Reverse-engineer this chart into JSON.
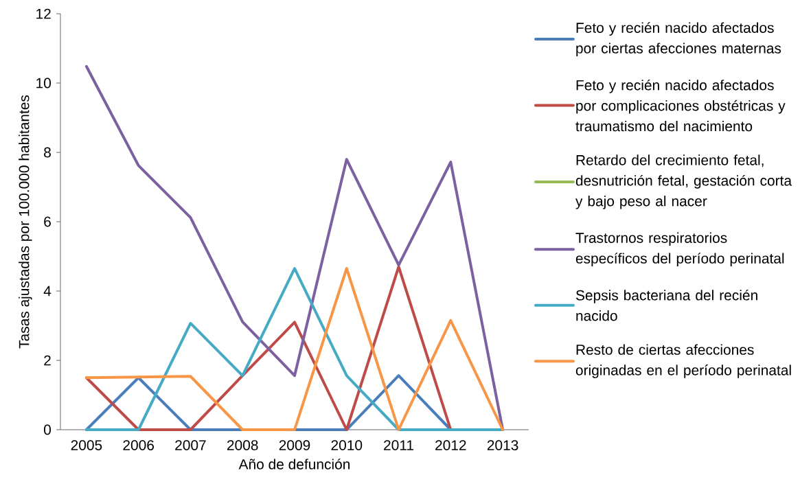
{
  "chart_data": {
    "type": "line",
    "xlabel": "Año de defunción",
    "ylabel": "Tasas ajustadas por 100.000 habitantes",
    "categories": [
      "2005",
      "2006",
      "2007",
      "2008",
      "2009",
      "2010",
      "2011",
      "2012",
      "2013"
    ],
    "series": [
      {
        "name": "Feto y recién nacido afectados por ciertas afecciones maternas",
        "color": "#4a7ebb",
        "values": [
          0,
          1.5,
          0,
          0,
          0,
          0,
          1.56,
          0,
          0
        ]
      },
      {
        "name": "Feto y recién nacido afectados por complicaciones obstétricas y traumatismo del nacimiento",
        "color": "#be4b48",
        "values": [
          1.5,
          0,
          0,
          1.56,
          3.1,
          0,
          4.7,
          0,
          0
        ]
      },
      {
        "name": "Retardo del crecimiento fetal, desnutrición fetal, gestación corta y bajo peso al nacer",
        "color": "#98b954",
        "values": [
          null,
          null,
          null,
          null,
          null,
          null,
          null,
          null,
          null
        ]
      },
      {
        "name": "Trastornos respiratorios específicos del período perinatal",
        "color": "#7d60a0",
        "values": [
          10.48,
          7.62,
          6.12,
          3.11,
          1.56,
          7.8,
          4.75,
          7.72,
          0
        ]
      },
      {
        "name": "Sepsis bacteriana del recién nacido",
        "color": "#46aac5",
        "values": [
          0,
          0,
          3.07,
          1.56,
          4.65,
          1.56,
          0,
          0,
          0
        ]
      },
      {
        "name": "Resto de ciertas afecciones originadas en el período perinatal",
        "color": "#f79646",
        "values": [
          1.5,
          1.52,
          1.54,
          0,
          0,
          4.65,
          0,
          3.15,
          0
        ]
      }
    ],
    "ylim": [
      0,
      12
    ],
    "yticks": [
      0,
      2,
      4,
      6,
      8,
      10,
      12
    ],
    "legend": "right"
  }
}
